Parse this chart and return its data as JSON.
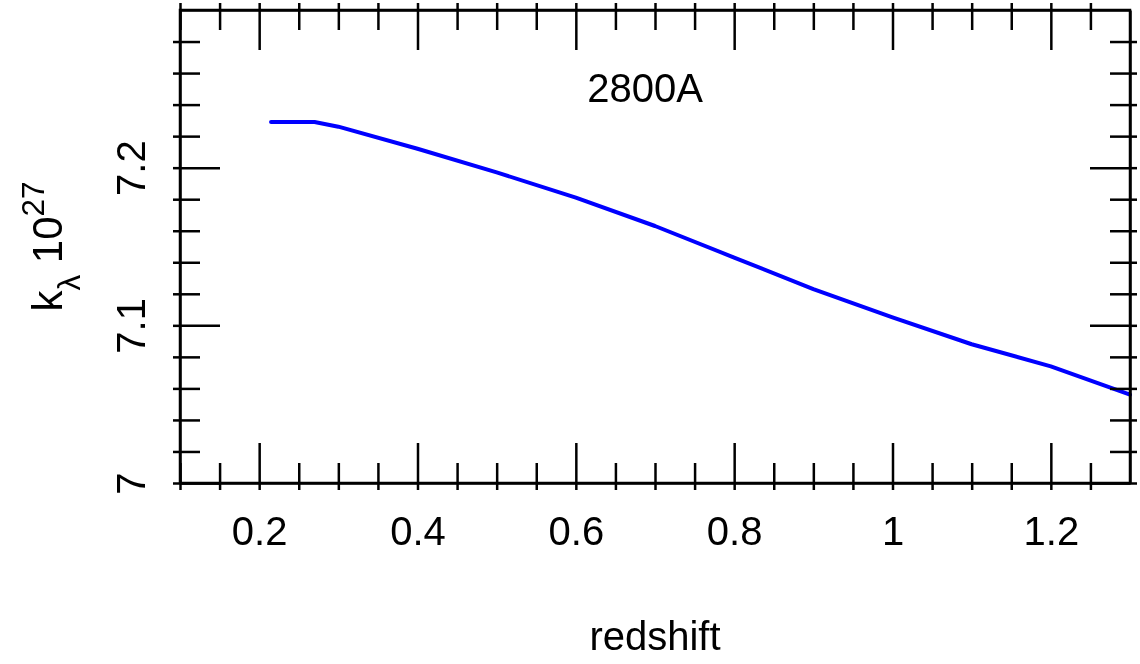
{
  "chart_data": {
    "type": "line",
    "xlabel": "redshift",
    "ylabel": "k$_{λ}$ 10$^{27}$",
    "annotations": [
      "2800A"
    ],
    "x": [
      0.215,
      0.27,
      0.3,
      0.4,
      0.5,
      0.6,
      0.7,
      0.8,
      0.9,
      1.0,
      1.1,
      1.2,
      1.3
    ],
    "series": [
      {
        "color": "#0000ff",
        "values": [
          7.229,
          7.229,
          7.226,
          7.212,
          7.197,
          7.181,
          7.163,
          7.143,
          7.123,
          7.105,
          7.088,
          7.074,
          7.056
        ]
      }
    ],
    "xlim": [
      0.1,
      1.3
    ],
    "ylim": [
      7,
      7.3
    ],
    "xticks": [
      {
        "value": 0.1,
        "label": null
      },
      {
        "value": 0.15,
        "label": null
      },
      0.2,
      {
        "value": 0.25,
        "label": null
      },
      {
        "value": 0.3,
        "label": null
      },
      {
        "value": 0.35,
        "label": null
      },
      0.4,
      {
        "value": 0.45,
        "label": null
      },
      {
        "value": 0.5,
        "label": null
      },
      {
        "value": 0.55,
        "label": null
      },
      0.6,
      {
        "value": 0.65,
        "label": null
      },
      {
        "value": 0.7,
        "label": null
      },
      {
        "value": 0.75,
        "label": null
      },
      0.8,
      {
        "value": 0.85,
        "label": null
      },
      {
        "value": 0.9,
        "label": null
      },
      {
        "value": 0.95,
        "label": null
      },
      1,
      {
        "value": 1.05,
        "label": null
      },
      {
        "value": 1.1,
        "label": null
      },
      {
        "value": 1.15,
        "label": null
      },
      1.2,
      {
        "value": 1.25,
        "label": null
      }
    ],
    "yticks": [
      7,
      {
        "value": 7.02,
        "label": null
      },
      {
        "value": 7.04,
        "label": null
      },
      {
        "value": 7.06,
        "label": null
      },
      {
        "value": 7.08,
        "label": null
      },
      7.1,
      {
        "value": 7.12,
        "label": null
      },
      {
        "value": 7.14,
        "label": null
      },
      {
        "value": 7.16,
        "label": null
      },
      {
        "value": 7.18,
        "label": null
      },
      7.2,
      {
        "value": 7.22,
        "label": null
      },
      {
        "value": 7.24,
        "label": null
      },
      {
        "value": 7.26,
        "label": null
      },
      {
        "value": 7.28,
        "label": null
      }
    ],
    "marker": "none",
    "line_style": "solid",
    "grid": false
  }
}
